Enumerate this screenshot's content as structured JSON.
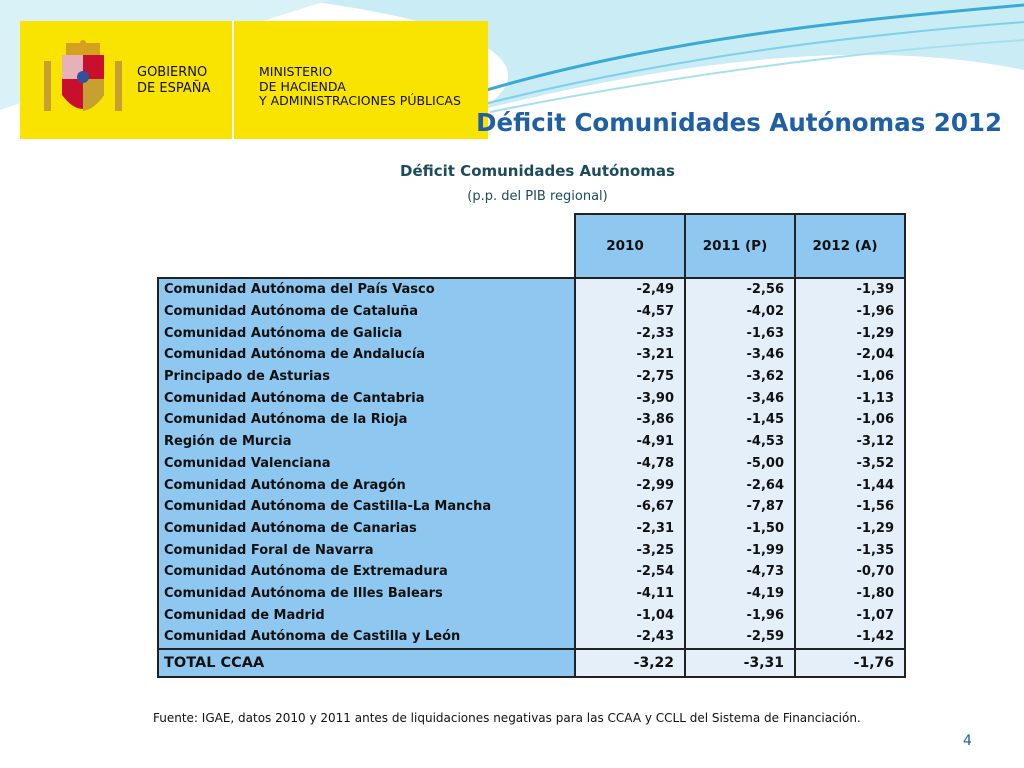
{
  "logo": {
    "gobierno_lines": [
      "GOBIERNO",
      "DE ESPAÑA"
    ],
    "ministerio_lines": [
      "MINISTERIO",
      "DE HACIENDA",
      "Y ADMINISTRACIONES PÚBLICAS"
    ]
  },
  "slide_title": "Déficit Comunidades Autónomas 2012",
  "table_title": "Déficit Comunidades Autónomas",
  "table_unit": "(p.p.  del PIB regional)",
  "columns": [
    "2010",
    "2011 (P)",
    "2012 (A)"
  ],
  "rows": [
    {
      "name": "Comunidad Autónoma del País Vasco",
      "values": [
        "-2,49",
        "-2,56",
        "-1,39"
      ]
    },
    {
      "name": "Comunidad Autónoma de Cataluña",
      "values": [
        "-4,57",
        "-4,02",
        "-1,96"
      ]
    },
    {
      "name": "Comunidad Autónoma de Galicia",
      "values": [
        "-2,33",
        "-1,63",
        "-1,29"
      ]
    },
    {
      "name": "Comunidad Autónoma de Andalucía",
      "values": [
        "-3,21",
        "-3,46",
        "-2,04"
      ]
    },
    {
      "name": "Principado de Asturias",
      "values": [
        "-2,75",
        "-3,62",
        "-1,06"
      ]
    },
    {
      "name": "Comunidad Autónoma de Cantabria",
      "values": [
        "-3,90",
        "-3,46",
        "-1,13"
      ]
    },
    {
      "name": "Comunidad Autónoma de la Rioja",
      "values": [
        "-3,86",
        "-1,45",
        "-1,06"
      ]
    },
    {
      "name": "Región de Murcia",
      "values": [
        "-4,91",
        "-4,53",
        "-3,12"
      ]
    },
    {
      "name": "Comunidad Valenciana",
      "values": [
        "-4,78",
        "-5,00",
        "-3,52"
      ]
    },
    {
      "name": "Comunidad Autónoma de Aragón",
      "values": [
        "-2,99",
        "-2,64",
        "-1,44"
      ]
    },
    {
      "name": "Comunidad Autónoma de Castilla-La Mancha",
      "values": [
        "-6,67",
        "-7,87",
        "-1,56"
      ]
    },
    {
      "name": "Comunidad Autónoma de Canarias",
      "values": [
        "-2,31",
        "-1,50",
        "-1,29"
      ]
    },
    {
      "name": "Comunidad Foral de Navarra",
      "values": [
        "-3,25",
        "-1,99",
        "-1,35"
      ]
    },
    {
      "name": "Comunidad Autónoma de Extremadura",
      "values": [
        "-2,54",
        "-4,73",
        "-0,70"
      ]
    },
    {
      "name": "Comunidad Autónoma de Illes Balears",
      "values": [
        "-4,11",
        "-4,19",
        "-1,80"
      ]
    },
    {
      "name": "Comunidad de Madrid",
      "values": [
        "-1,04",
        "-1,96",
        "-1,07"
      ]
    },
    {
      "name": "Comunidad Autónoma de Castilla y León",
      "values": [
        "-2,43",
        "-2,59",
        "-1,42"
      ]
    }
  ],
  "total": {
    "name": "TOTAL CCAA",
    "values": [
      "-3,22",
      "-3,31",
      "-1,76"
    ]
  },
  "source": "Fuente: IGAE, datos 2010 y 2011 antes de liquidaciones negativas para las CCAA y CCLL del Sistema de Financiación.",
  "page_number": "4",
  "colors": {
    "title_blue": "#1f5fa6",
    "header_blue": "#8ec8f0",
    "cell_light": "#e4effa",
    "logo_yellow": "#f9e300"
  }
}
